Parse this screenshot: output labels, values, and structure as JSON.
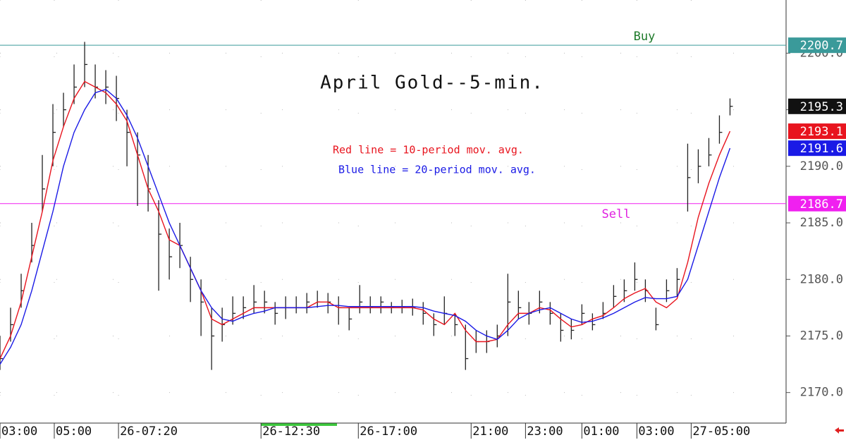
{
  "chart_data": {
    "type": "ohlc",
    "title": "April Gold--5-min.",
    "annotations": [
      {
        "text": "Red line = 10-period mov. avg.",
        "color": "#e8141e"
      },
      {
        "text": "Blue line = 20-period mov. avg.",
        "color": "#1a1ae6"
      }
    ],
    "x": [
      0,
      1,
      2,
      3,
      4,
      5,
      6,
      7,
      8,
      9,
      10,
      11,
      12,
      13,
      14,
      15,
      16,
      17,
      18,
      19,
      20,
      21,
      22,
      23,
      24,
      25,
      26,
      27,
      28,
      29,
      30,
      31,
      32,
      33,
      34,
      35,
      36,
      37,
      38,
      39,
      40,
      41,
      42,
      43,
      44,
      45,
      46,
      47,
      48,
      49,
      50,
      51,
      52,
      53,
      54,
      55,
      56,
      57,
      58,
      59,
      60,
      61,
      62,
      63,
      64,
      65,
      66,
      67,
      68,
      69
    ],
    "bars": {
      "color": "#222222",
      "high": [
        2175,
        2177.5,
        2180.5,
        2185,
        2191,
        2195.5,
        2196.5,
        2199,
        2201,
        2199,
        2198.5,
        2198,
        2195,
        2193,
        2191,
        2187,
        2184.5,
        2185,
        2182,
        2180,
        2177.5,
        2177.5,
        2178.5,
        2178.5,
        2179.5,
        2179,
        2178,
        2178.5,
        2178.5,
        2178.8,
        2179,
        2178.8,
        2178.5,
        2177.5,
        2179.5,
        2178.5,
        2178.5,
        2178,
        2178.2,
        2178.3,
        2178,
        2177,
        2178.5,
        2177,
        2176,
        2175.5,
        2175.5,
        2176,
        2180.5,
        2179,
        2178,
        2179,
        2178,
        2177,
        2176.5,
        2177.8,
        2177,
        2178,
        2179.5,
        2180,
        2181.5,
        2180,
        2177.5,
        2180,
        2181,
        2192,
        2191.5,
        2192.5,
        2194.5,
        2196
      ],
      "low": [
        2172,
        2174.5,
        2177.5,
        2181.5,
        2186,
        2190,
        2193.5,
        2195.5,
        2197,
        2196,
        2195.5,
        2194,
        2190,
        2186.5,
        2186,
        2179,
        2180,
        2181,
        2178,
        2175,
        2172,
        2174.5,
        2176,
        2176.5,
        2177,
        2177,
        2176,
        2176.5,
        2177,
        2177,
        2177.5,
        2177,
        2176,
        2175.5,
        2177,
        2177,
        2177,
        2177,
        2177,
        2176.8,
        2176,
        2175,
        2176,
        2175,
        2172,
        2173.5,
        2173.5,
        2174,
        2175,
        2176.5,
        2176,
        2177,
        2176,
        2174.5,
        2174.7,
        2176,
        2175.5,
        2176.5,
        2177.5,
        2178,
        2179,
        2178,
        2175.5,
        2178,
        2178.5,
        2186,
        2188.5,
        2190,
        2192,
        2194.5
      ],
      "close": [
        2173,
        2176,
        2179,
        2183,
        2188,
        2193,
        2195,
        2197,
        2199,
        2197,
        2197,
        2196,
        2193,
        2191,
        2188,
        2184,
        2182,
        2183,
        2180,
        2178,
        2175,
        2176,
        2177,
        2177.5,
        2178,
        2178,
        2177,
        2177.5,
        2177.5,
        2178,
        2178,
        2178,
        2177.5,
        2176.5,
        2178,
        2177.5,
        2178,
        2177.5,
        2177.5,
        2177.5,
        2177,
        2176,
        2177,
        2176,
        2173,
        2174.5,
        2174.5,
        2175,
        2178,
        2177.5,
        2177,
        2178,
        2177,
        2175.5,
        2175.5,
        2177,
        2176,
        2177,
        2178.5,
        2179,
        2180,
        2179,
        2176,
        2179,
        2180,
        2189,
        2190,
        2191,
        2193,
        2195.3
      ]
    },
    "moving_averages": [
      {
        "color": "#e8141e",
        "values": [
          2173,
          2175,
          2178,
          2182,
          2186,
          2190.5,
          2193.5,
          2196,
          2197.5,
          2197,
          2196.5,
          2195.5,
          2194,
          2191,
          2188,
          2186,
          2183.5,
          2183,
          2181,
          2179,
          2176.5,
          2176,
          2176.5,
          2177,
          2177.5,
          2177.5,
          2177.5,
          2177.5,
          2177.5,
          2177.5,
          2178,
          2178,
          2177.5,
          2177.5,
          2177.5,
          2177.5,
          2177.5,
          2177.5,
          2177.5,
          2177.5,
          2177.3,
          2176.5,
          2176,
          2177,
          2175.5,
          2174.5,
          2174.5,
          2174.7,
          2176,
          2177,
          2177,
          2177.5,
          2177.3,
          2176.5,
          2175.8,
          2176,
          2176.5,
          2176.8,
          2177.5,
          2178.3,
          2178.8,
          2179.2,
          2178,
          2177.5,
          2178.3,
          2181.5,
          2185.5,
          2188.5,
          2191,
          2193.1
        ]
      },
      {
        "color": "#1a1ae6",
        "values": [
          2172.5,
          2174,
          2176,
          2179,
          2182.5,
          2186,
          2190,
          2193,
          2195,
          2196.5,
          2196.8,
          2196,
          2194.5,
          2192.5,
          2190,
          2187.5,
          2185,
          2183,
          2181,
          2179,
          2177.5,
          2176.5,
          2176.3,
          2176.7,
          2177,
          2177.2,
          2177.5,
          2177.5,
          2177.5,
          2177.5,
          2177.6,
          2177.7,
          2177.7,
          2177.6,
          2177.6,
          2177.6,
          2177.6,
          2177.6,
          2177.6,
          2177.6,
          2177.5,
          2177.2,
          2177,
          2176.8,
          2176.3,
          2175.5,
          2175,
          2174.7,
          2175.5,
          2176.5,
          2177,
          2177.3,
          2177.5,
          2177,
          2176.5,
          2176.2,
          2176.3,
          2176.6,
          2177,
          2177.5,
          2178,
          2178.4,
          2178.3,
          2178.3,
          2178.5,
          2180,
          2183,
          2186,
          2189,
          2191.6
        ]
      }
    ],
    "levels": [
      {
        "label": "Buy",
        "value": 2200.7,
        "color": "#3a9a9a",
        "label_color": "#1e7a2a"
      },
      {
        "label": "Sell",
        "value": 2186.7,
        "color": "#f020f0",
        "label_color": "#e020e0"
      }
    ],
    "last_price_color": "#111111",
    "xlim": [
      0,
      74.3
    ],
    "ylim": [
      2167.3,
      2204.7
    ],
    "yticks": [
      {
        "value": 2170,
        "label": "2170.0"
      },
      {
        "value": 2175,
        "label": "2175.0"
      },
      {
        "value": 2180,
        "label": "2180.0"
      },
      {
        "value": 2185,
        "label": "2185.0"
      },
      {
        "value": 2190,
        "label": "2190.0"
      },
      {
        "value": 2195,
        "label": "2195.0"
      },
      {
        "value": 2200,
        "label": "2200.0"
      }
    ],
    "xticks": [
      {
        "value": 0,
        "label": "03:00"
      },
      {
        "value": 5.13,
        "label": "05:00"
      },
      {
        "value": 11.2,
        "label": "26-07:20"
      },
      {
        "value": 24.67,
        "label": "26-12:30"
      },
      {
        "value": 33.87,
        "label": "26-17:00"
      },
      {
        "value": 44.53,
        "label": "21:00"
      },
      {
        "value": 49.67,
        "label": "23:00"
      },
      {
        "value": 55,
        "label": "01:00"
      },
      {
        "value": 60.2,
        "label": "03:00"
      },
      {
        "value": 65.33,
        "label": "27-05:00"
      }
    ],
    "grid": true
  }
}
